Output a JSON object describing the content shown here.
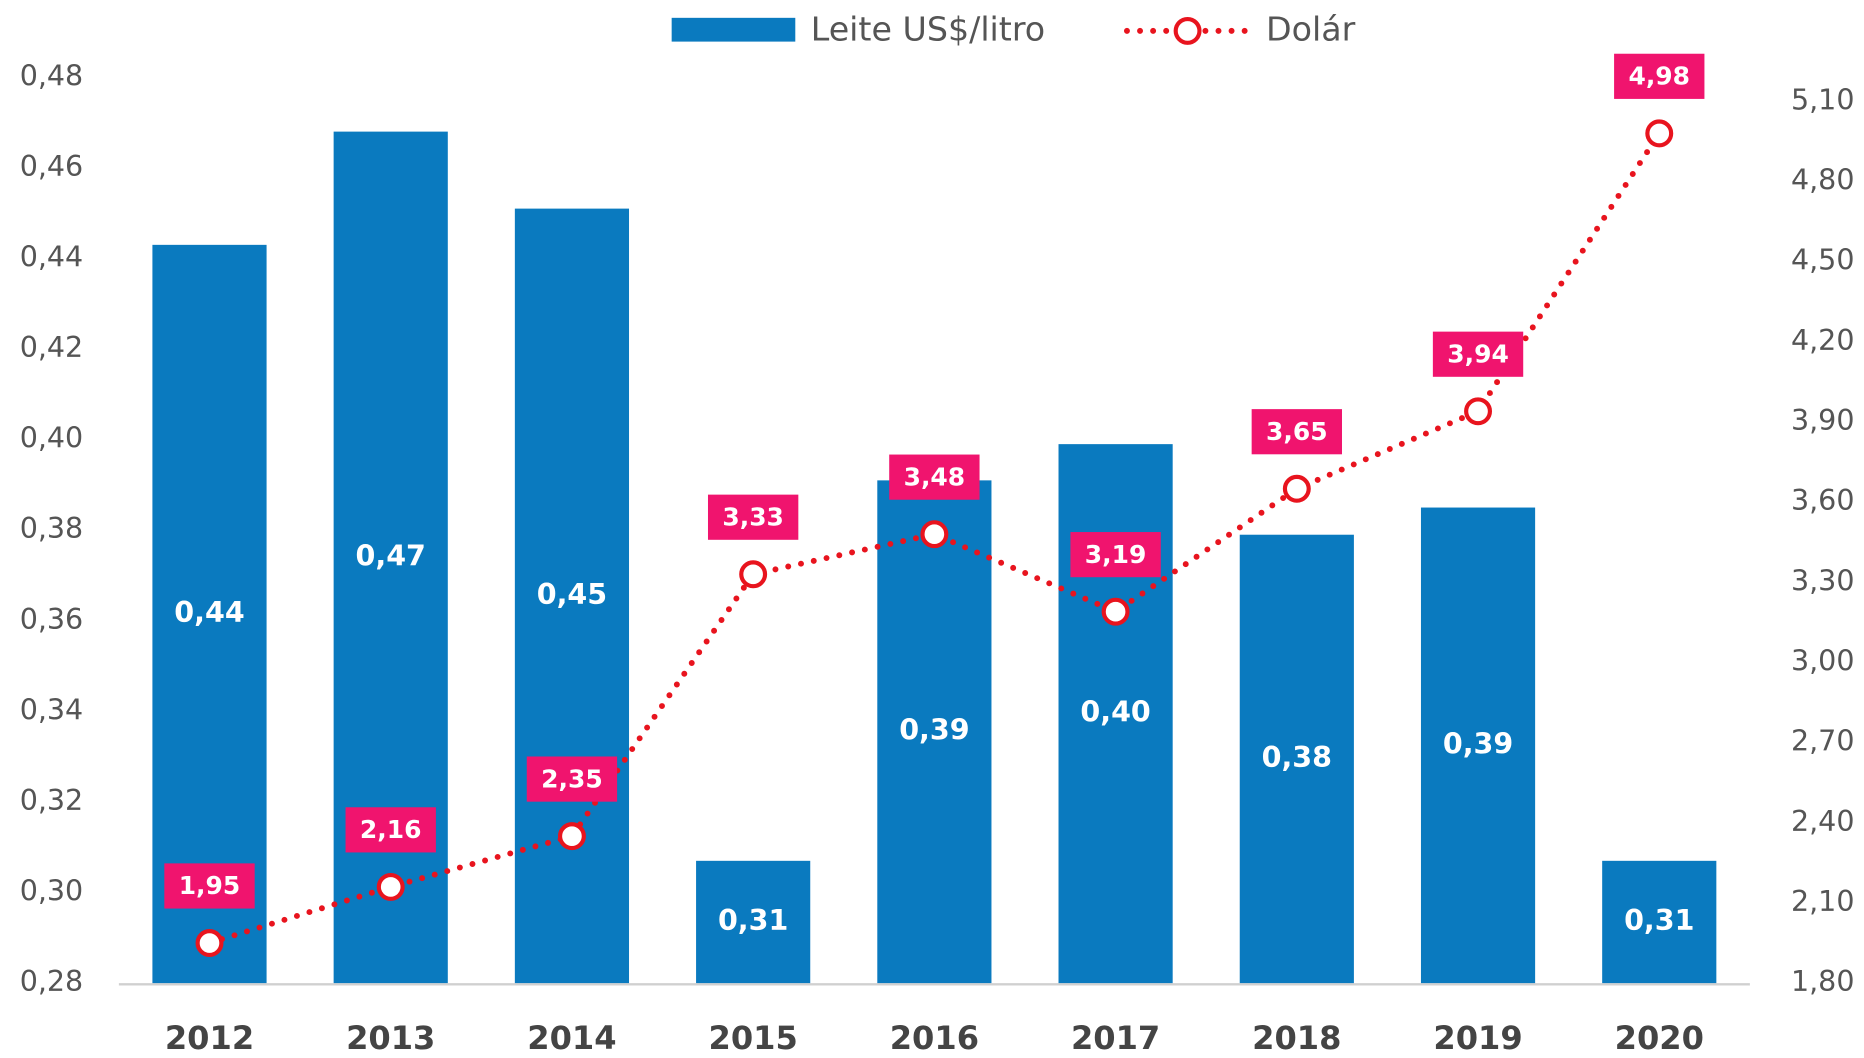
{
  "chart_data": {
    "type": "bar",
    "categories": [
      "2012",
      "2013",
      "2014",
      "2015",
      "2016",
      "2017",
      "2018",
      "2019",
      "2020"
    ],
    "series": [
      {
        "name": "Leite US$/litro",
        "type": "bar",
        "color": "#0a7abf",
        "values": [
          0.443,
          0.468,
          0.451,
          0.307,
          0.391,
          0.399,
          0.379,
          0.385,
          0.307
        ],
        "value_labels": [
          "0,44",
          "0,47",
          "0,45",
          "0,31",
          "0,39",
          "0,40",
          "0,38",
          "0,39",
          "0,31"
        ]
      },
      {
        "name": "Dolár",
        "type": "line",
        "axis": "y2",
        "color": "#e8141e",
        "label_color": "#f0146e",
        "values": [
          1.95,
          2.16,
          2.35,
          3.33,
          3.48,
          3.19,
          3.65,
          3.94,
          4.98
        ],
        "value_labels": [
          "1,95",
          "2,16",
          "2,35",
          "3,33",
          "3,48",
          "3,19",
          "3,65",
          "3,94",
          "4,98"
        ]
      }
    ],
    "ylim": [
      0.28,
      0.48
    ],
    "yticks": [
      {
        "value": 0.28,
        "label": "0,28"
      },
      {
        "value": 0.3,
        "label": "0,30"
      },
      {
        "value": 0.32,
        "label": "0,32"
      },
      {
        "value": 0.34,
        "label": "0,34"
      },
      {
        "value": 0.36,
        "label": "0,36"
      },
      {
        "value": 0.38,
        "label": "0,38"
      },
      {
        "value": 0.4,
        "label": "0,40"
      },
      {
        "value": 0.42,
        "label": "0,42"
      },
      {
        "value": 0.44,
        "label": "0,44"
      },
      {
        "value": 0.46,
        "label": "0,46"
      },
      {
        "value": 0.48,
        "label": "0,48"
      }
    ],
    "y2lim": [
      1.8,
      5.19
    ],
    "y2ticks": [
      {
        "value": 1.8,
        "label": "1,80"
      },
      {
        "value": 2.1,
        "label": "2,10"
      },
      {
        "value": 2.4,
        "label": "2,40"
      },
      {
        "value": 2.7,
        "label": "2,70"
      },
      {
        "value": 3.0,
        "label": "3,00"
      },
      {
        "value": 3.3,
        "label": "3,30"
      },
      {
        "value": 3.6,
        "label": "3,60"
      },
      {
        "value": 3.9,
        "label": "3,90"
      },
      {
        "value": 4.2,
        "label": "4,20"
      },
      {
        "value": 4.5,
        "label": "4,50"
      },
      {
        "value": 4.8,
        "label": "4,80"
      },
      {
        "value": 5.1,
        "label": "5,10"
      }
    ],
    "grid": false,
    "legend": "top"
  }
}
